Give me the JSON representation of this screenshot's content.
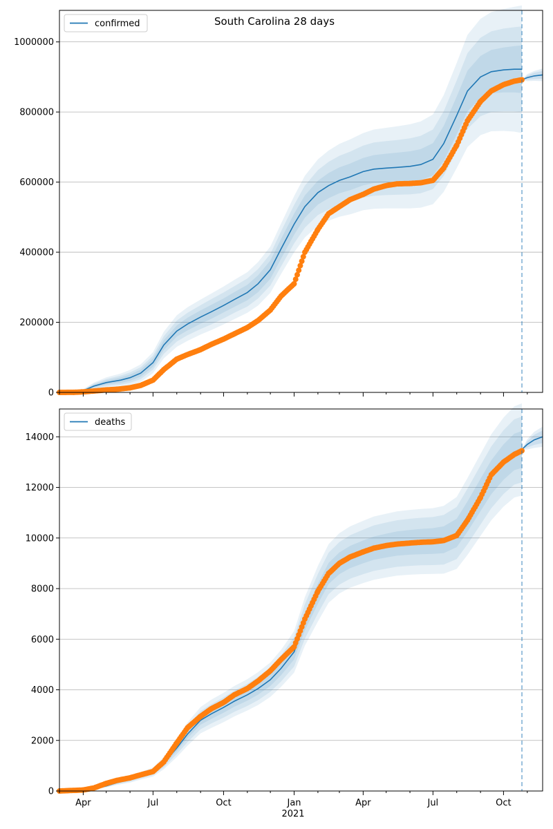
{
  "figure_title": "South Carolina 28 days",
  "x_tick_labels": [
    "Apr",
    "Jul",
    "Oct",
    "Jan",
    "Apr",
    "Jul",
    "Oct"
  ],
  "x_year_label": "2021",
  "colors": {
    "model": "#1f77b4",
    "observed": "#ff7f0e",
    "band": "#1f77b4",
    "grid": "#b0b0b0",
    "forecast_line": "#1f77b4"
  },
  "chart_data": [
    {
      "type": "line",
      "panel": "top",
      "legend": "confirmed",
      "legend_position": "top-left",
      "grid": "horizontal",
      "x_range": [
        "2020-03-01",
        "2021-11-21"
      ],
      "ylim": [
        0,
        1090000
      ],
      "y_ticks": [
        0,
        200000,
        400000,
        600000,
        800000,
        1000000
      ],
      "y_tick_labels": [
        "0",
        "200000",
        "400000",
        "600000",
        "800000",
        "1000000"
      ],
      "forecast_start": "2021-10-25",
      "model_series": {
        "name": "confirmed",
        "x": [
          "2020-03-01",
          "2020-03-20",
          "2020-04-01",
          "2020-04-15",
          "2020-05-01",
          "2020-05-20",
          "2020-06-01",
          "2020-06-15",
          "2020-07-01",
          "2020-07-15",
          "2020-08-01",
          "2020-08-15",
          "2020-09-01",
          "2020-09-15",
          "2020-10-01",
          "2020-10-15",
          "2020-11-01",
          "2020-11-15",
          "2020-12-01",
          "2020-12-15",
          "2021-01-01",
          "2021-01-15",
          "2021-02-01",
          "2021-02-15",
          "2021-03-01",
          "2021-03-15",
          "2021-04-01",
          "2021-04-15",
          "2021-05-01",
          "2021-05-15",
          "2021-06-01",
          "2021-06-15",
          "2021-07-01",
          "2021-07-15",
          "2021-08-01",
          "2021-08-15",
          "2021-09-01",
          "2021-09-15",
          "2021-10-01",
          "2021-10-15",
          "2021-10-25"
        ],
        "y": [
          0,
          1000,
          5000,
          18000,
          28000,
          35000,
          42000,
          55000,
          85000,
          135000,
          175000,
          195000,
          215000,
          230000,
          248000,
          265000,
          285000,
          310000,
          350000,
          410000,
          480000,
          530000,
          570000,
          590000,
          605000,
          615000,
          630000,
          637000,
          640000,
          642000,
          645000,
          650000,
          665000,
          710000,
          790000,
          860000,
          900000,
          915000,
          920000,
          922000,
          922000
        ],
        "band_half_widths": [
          [
            0,
            500,
            2000,
            4000,
            6000,
            8000,
            9000,
            10000,
            12000,
            14000,
            16000,
            18000,
            19000,
            20000,
            20000,
            21000,
            22000,
            24000,
            26000,
            28000,
            30000,
            32000,
            34000,
            36000,
            37000,
            38000,
            39000,
            40000,
            41000,
            42000,
            43000,
            44000,
            46000,
            50000,
            54000,
            58000,
            60000,
            62000,
            64000,
            66000,
            68000
          ],
          [
            0,
            1000,
            3000,
            7000,
            10000,
            13000,
            15000,
            17000,
            20000,
            25000,
            30000,
            32000,
            34000,
            36000,
            37000,
            38000,
            40000,
            42000,
            45000,
            50000,
            55000,
            60000,
            64000,
            68000,
            70000,
            72000,
            74000,
            76000,
            77000,
            78000,
            80000,
            82000,
            85000,
            92000,
            100000,
            108000,
            112000,
            115000,
            118000,
            120000,
            122000
          ],
          [
            0,
            1500,
            4000,
            10000,
            15000,
            19000,
            22000,
            25000,
            30000,
            38000,
            45000,
            48000,
            50000,
            52000,
            54000,
            56000,
            58000,
            62000,
            66000,
            72000,
            80000,
            88000,
            95000,
            100000,
            104000,
            107000,
            110000,
            113000,
            115000,
            117000,
            120000,
            123000,
            128000,
            138000,
            150000,
            160000,
            166000,
            170000,
            174000,
            178000,
            182000
          ]
        ]
      },
      "forecast_series": {
        "x": [
          "2021-10-25",
          "2021-11-01",
          "2021-11-10",
          "2021-11-21"
        ],
        "y": [
          892000,
          898000,
          903000,
          906000
        ],
        "band_half_widths": [
          [
            0,
            6000,
            9000,
            11000
          ],
          [
            0,
            10000,
            14000,
            18000
          ]
        ]
      },
      "observed_series": {
        "x": [
          "2020-03-01",
          "2020-03-20",
          "2020-04-01",
          "2020-04-15",
          "2020-05-01",
          "2020-05-15",
          "2020-06-01",
          "2020-06-15",
          "2020-07-01",
          "2020-07-15",
          "2020-08-01",
          "2020-08-15",
          "2020-09-01",
          "2020-09-15",
          "2020-10-01",
          "2020-10-15",
          "2020-11-01",
          "2020-11-15",
          "2020-12-01",
          "2020-12-15",
          "2021-01-01",
          "2021-01-15",
          "2021-02-01",
          "2021-02-15",
          "2021-03-01",
          "2021-03-15",
          "2021-04-01",
          "2021-04-15",
          "2021-05-01",
          "2021-05-15",
          "2021-06-01",
          "2021-06-15",
          "2021-07-01",
          "2021-07-15",
          "2021-08-01",
          "2021-08-15",
          "2021-09-01",
          "2021-09-15",
          "2021-10-01",
          "2021-10-15",
          "2021-10-25"
        ],
        "y": [
          0,
          200,
          1500,
          4000,
          7000,
          9000,
          13000,
          20000,
          35000,
          65000,
          95000,
          108000,
          122000,
          137000,
          152000,
          167000,
          185000,
          205000,
          235000,
          275000,
          310000,
          400000,
          465000,
          510000,
          530000,
          550000,
          565000,
          580000,
          590000,
          595000,
          596000,
          598000,
          605000,
          640000,
          705000,
          775000,
          830000,
          860000,
          878000,
          888000,
          892000
        ]
      }
    },
    {
      "type": "line",
      "panel": "bottom",
      "legend": "deaths",
      "legend_position": "top-left",
      "grid": "horizontal",
      "x_range": [
        "2020-03-01",
        "2021-11-21"
      ],
      "ylim": [
        0,
        15100
      ],
      "y_ticks": [
        0,
        2000,
        4000,
        6000,
        8000,
        10000,
        12000,
        14000
      ],
      "y_tick_labels": [
        "0",
        "2000",
        "4000",
        "6000",
        "8000",
        "10000",
        "12000",
        "14000"
      ],
      "forecast_start": "2021-10-25",
      "model_series": {
        "name": "deaths",
        "x": [
          "2020-03-01",
          "2020-04-01",
          "2020-04-15",
          "2020-05-01",
          "2020-05-15",
          "2020-06-01",
          "2020-06-15",
          "2020-07-01",
          "2020-07-15",
          "2020-08-01",
          "2020-08-15",
          "2020-09-01",
          "2020-09-15",
          "2020-10-01",
          "2020-10-15",
          "2020-11-01",
          "2020-11-15",
          "2020-12-01",
          "2020-12-15",
          "2021-01-01",
          "2021-01-15",
          "2021-02-01",
          "2021-02-15",
          "2021-03-01",
          "2021-03-15",
          "2021-04-01",
          "2021-04-15",
          "2021-05-01",
          "2021-05-15",
          "2021-06-01",
          "2021-06-15",
          "2021-07-01",
          "2021-07-15",
          "2021-08-01",
          "2021-08-15",
          "2021-09-01",
          "2021-09-15",
          "2021-10-01",
          "2021-10-15",
          "2021-10-25"
        ],
        "y": [
          0,
          20,
          80,
          200,
          330,
          450,
          600,
          750,
          1100,
          1700,
          2250,
          2800,
          3050,
          3300,
          3550,
          3800,
          4050,
          4400,
          4850,
          5500,
          6700,
          7800,
          8600,
          9000,
          9250,
          9450,
          9600,
          9700,
          9780,
          9830,
          9860,
          9880,
          9930,
          10200,
          10850,
          11700,
          12400,
          13000,
          13400,
          13500
        ],
        "band_half_widths": [
          [
            0,
            5,
            10,
            20,
            30,
            40,
            50,
            60,
            80,
            120,
            160,
            180,
            200,
            210,
            220,
            230,
            240,
            250,
            270,
            300,
            350,
            400,
            420,
            430,
            440,
            450,
            460,
            470,
            480,
            490,
            500,
            510,
            530,
            560,
            600,
            640,
            670,
            700,
            720,
            730
          ],
          [
            0,
            10,
            20,
            40,
            60,
            80,
            100,
            120,
            160,
            240,
            320,
            360,
            380,
            400,
            420,
            440,
            460,
            480,
            520,
            580,
            680,
            780,
            820,
            840,
            860,
            880,
            900,
            910,
            920,
            930,
            940,
            950,
            980,
            1030,
            1100,
            1170,
            1220,
            1260,
            1290,
            1300
          ],
          [
            0,
            15,
            30,
            60,
            90,
            120,
            150,
            180,
            240,
            360,
            460,
            520,
            560,
            580,
            600,
            620,
            650,
            680,
            730,
            820,
            960,
            1100,
            1160,
            1190,
            1210,
            1230,
            1250,
            1260,
            1270,
            1280,
            1290,
            1300,
            1340,
            1420,
            1520,
            1620,
            1700,
            1760,
            1800,
            1820
          ]
        ]
      },
      "forecast_series": {
        "x": [
          "2021-10-25",
          "2021-11-01",
          "2021-11-10",
          "2021-11-21"
        ],
        "y": [
          13500,
          13700,
          13880,
          14000
        ],
        "band_half_widths": [
          [
            0,
            120,
            200,
            250
          ],
          [
            0,
            200,
            320,
            400
          ]
        ]
      },
      "observed_series": {
        "x": [
          "2020-03-01",
          "2020-04-01",
          "2020-04-15",
          "2020-05-01",
          "2020-05-15",
          "2020-06-01",
          "2020-06-15",
          "2020-07-01",
          "2020-07-15",
          "2020-08-01",
          "2020-08-15",
          "2020-09-01",
          "2020-09-15",
          "2020-10-01",
          "2020-10-15",
          "2020-11-01",
          "2020-11-15",
          "2020-12-01",
          "2020-12-15",
          "2021-01-01",
          "2021-01-15",
          "2021-02-01",
          "2021-02-15",
          "2021-03-01",
          "2021-03-15",
          "2021-04-01",
          "2021-04-15",
          "2021-05-01",
          "2021-05-15",
          "2021-06-01",
          "2021-06-15",
          "2021-07-01",
          "2021-07-15",
          "2021-08-01",
          "2021-08-15",
          "2021-09-01",
          "2021-09-15",
          "2021-10-01",
          "2021-10-15",
          "2021-10-25"
        ],
        "y": [
          0,
          40,
          120,
          300,
          420,
          520,
          640,
          770,
          1150,
          1900,
          2500,
          2950,
          3250,
          3500,
          3800,
          4050,
          4350,
          4750,
          5200,
          5700,
          6800,
          7900,
          8600,
          9000,
          9250,
          9450,
          9600,
          9700,
          9760,
          9800,
          9830,
          9850,
          9900,
          10100,
          10700,
          11600,
          12500,
          13000,
          13300,
          13450
        ]
      }
    }
  ]
}
